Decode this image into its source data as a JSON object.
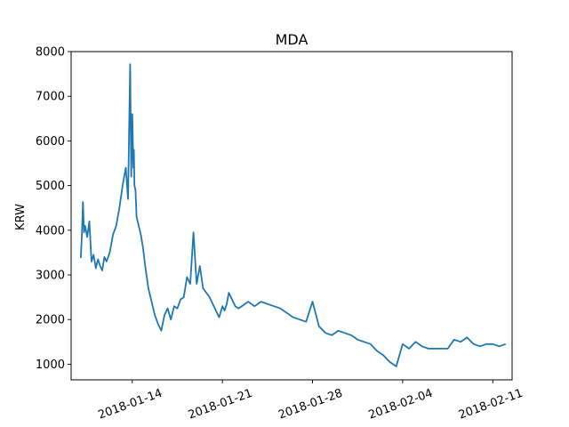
{
  "chart_data": {
    "type": "line",
    "title": "MDA",
    "xlabel": "",
    "ylabel": "KRW",
    "x_tick_labels": [
      "2018-01-14",
      "2018-01-21",
      "2018-01-28",
      "2018-02-04",
      "2018-02-11"
    ],
    "x_tick_dates": [
      "2018-01-14",
      "2018-01-21",
      "2018-01-28",
      "2018-02-04",
      "2018-02-11"
    ],
    "y_ticks": [
      1000,
      2000,
      3000,
      4000,
      5000,
      6000,
      7000,
      8000
    ],
    "y_tick_labels": [
      "1000",
      "2000",
      "3000",
      "4000",
      "5000",
      "6000",
      "7000",
      "8000"
    ],
    "xlim": [
      "2018-01-09 06:00",
      "2018-02-12 12:00"
    ],
    "ylim": [
      650,
      8000
    ],
    "grid": false,
    "line_color": "#1f77b4",
    "series": [
      {
        "x": [
          "2018-01-10 00:00",
          "2018-01-10 02:00",
          "2018-01-10 04:00",
          "2018-01-10 06:00",
          "2018-01-10 08:00",
          "2018-01-10 12:00",
          "2018-01-10 16:00",
          "2018-01-10 20:00",
          "2018-01-11 00:00",
          "2018-01-11 04:00",
          "2018-01-11 08:00",
          "2018-01-11 12:00",
          "2018-01-11 16:00",
          "2018-01-11 20:00",
          "2018-01-12 00:00",
          "2018-01-12 06:00",
          "2018-01-12 12:00",
          "2018-01-12 18:00",
          "2018-01-13 00:00",
          "2018-01-13 06:00",
          "2018-01-13 12:00",
          "2018-01-13 16:00",
          "2018-01-13 20:00",
          "2018-01-13 22:00",
          "2018-01-14 00:00",
          "2018-01-14 02:00",
          "2018-01-14 03:00",
          "2018-01-14 04:00",
          "2018-01-14 06:00",
          "2018-01-14 08:00",
          "2018-01-14 12:00",
          "2018-01-14 16:00",
          "2018-01-14 20:00",
          "2018-01-15 00:00",
          "2018-01-15 06:00",
          "2018-01-15 12:00",
          "2018-01-15 18:00",
          "2018-01-16 00:00",
          "2018-01-16 06:00",
          "2018-01-16 12:00",
          "2018-01-16 18:00",
          "2018-01-17 00:00",
          "2018-01-17 06:00",
          "2018-01-17 12:00",
          "2018-01-17 18:00",
          "2018-01-18 00:00",
          "2018-01-18 06:00",
          "2018-01-18 12:00",
          "2018-01-18 18:00",
          "2018-01-19 00:00",
          "2018-01-19 06:00",
          "2018-01-19 12:00",
          "2018-01-19 18:00",
          "2018-01-20 00:00",
          "2018-01-20 06:00",
          "2018-01-20 12:00",
          "2018-01-20 18:00",
          "2018-01-21 00:00",
          "2018-01-21 04:00",
          "2018-01-21 08:00",
          "2018-01-21 12:00",
          "2018-01-21 18:00",
          "2018-01-22 00:00",
          "2018-01-22 06:00",
          "2018-01-22 12:00",
          "2018-01-22 18:00",
          "2018-01-23 00:00",
          "2018-01-23 12:00",
          "2018-01-24 00:00",
          "2018-01-24 12:00",
          "2018-01-25 00:00",
          "2018-01-25 12:00",
          "2018-01-26 00:00",
          "2018-01-26 12:00",
          "2018-01-27 00:00",
          "2018-01-27 12:00",
          "2018-01-28 00:00",
          "2018-01-28 12:00",
          "2018-01-29 00:00",
          "2018-01-29 12:00",
          "2018-01-30 00:00",
          "2018-01-30 12:00",
          "2018-01-31 00:00",
          "2018-01-31 06:00",
          "2018-01-31 12:00",
          "2018-02-01 00:00",
          "2018-02-01 12:00",
          "2018-02-02 00:00",
          "2018-02-02 12:00",
          "2018-02-03 00:00",
          "2018-02-03 12:00",
          "2018-02-04 00:00",
          "2018-02-04 12:00",
          "2018-02-05 00:00",
          "2018-02-05 06:00",
          "2018-02-05 12:00",
          "2018-02-06 00:00",
          "2018-02-06 12:00",
          "2018-02-07 00:00",
          "2018-02-07 12:00",
          "2018-02-08 00:00",
          "2018-02-08 12:00",
          "2018-02-09 00:00",
          "2018-02-09 12:00",
          "2018-02-10 00:00",
          "2018-02-10 12:00",
          "2018-02-11 00:00",
          "2018-02-11 12:00",
          "2018-02-12 00:00"
        ],
        "y": [
          3380,
          3900,
          4630,
          3950,
          4100,
          3850,
          4200,
          3300,
          3450,
          3150,
          3350,
          3200,
          3100,
          3400,
          3300,
          3500,
          3900,
          4100,
          4500,
          5000,
          5400,
          4700,
          7720,
          5200,
          6600,
          5400,
          5800,
          5000,
          4900,
          4300,
          4100,
          3900,
          3600,
          3200,
          2700,
          2400,
          2100,
          1900,
          1750,
          2100,
          2250,
          2000,
          2300,
          2250,
          2450,
          2500,
          2950,
          2800,
          3950,
          2800,
          3200,
          2700,
          2600,
          2500,
          2350,
          2200,
          2050,
          2300,
          2200,
          2350,
          2600,
          2450,
          2300,
          2250,
          2300,
          2350,
          2400,
          2300,
          2400,
          2350,
          2300,
          2250,
          2150,
          2050,
          2000,
          1950,
          2400,
          1850,
          1700,
          1650,
          1750,
          1700,
          1650,
          1600,
          1550,
          1500,
          1450,
          1300,
          1200,
          1050,
          950,
          1450,
          1350,
          1500,
          1450,
          1400,
          1350,
          1350,
          1350,
          1350,
          1550,
          1500,
          1600,
          1450,
          1400,
          1450,
          1450,
          1400,
          1450
        ]
      }
    ]
  }
}
